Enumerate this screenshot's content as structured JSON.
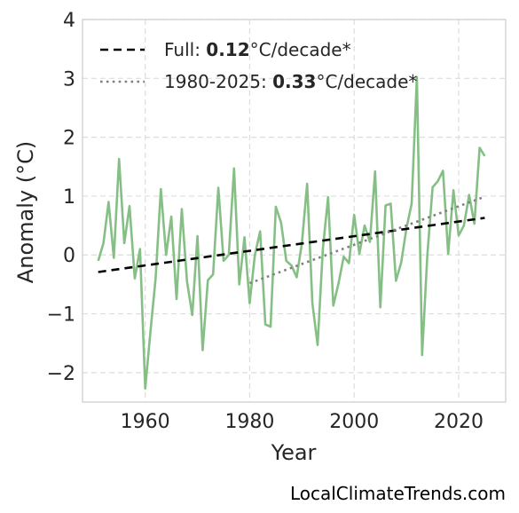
{
  "chart_data": {
    "type": "line",
    "xlabel": "Year",
    "ylabel": "Anomaly (°C)",
    "xlim": [
      1948,
      2029
    ],
    "ylim": [
      -2.5,
      4
    ],
    "xticks": [
      1960,
      1980,
      2000,
      2020
    ],
    "yticks": [
      -2,
      -1,
      0,
      1,
      2,
      3,
      4
    ],
    "ytick_labels": [
      "−2",
      "−1",
      "0",
      "1",
      "2",
      "3",
      "4"
    ],
    "grid": true,
    "legend_position": "top-left",
    "series": [
      {
        "style": "solid",
        "color": "#86bf86",
        "x": [
          1951,
          1952,
          1953,
          1954,
          1955,
          1956,
          1957,
          1958,
          1959,
          1960,
          1961,
          1962,
          1963,
          1964,
          1965,
          1966,
          1967,
          1968,
          1969,
          1970,
          1971,
          1972,
          1973,
          1974,
          1975,
          1976,
          1977,
          1978,
          1979,
          1980,
          1981,
          1982,
          1983,
          1984,
          1985,
          1986,
          1987,
          1988,
          1989,
          1990,
          1991,
          1992,
          1993,
          1994,
          1995,
          1996,
          1997,
          1998,
          1999,
          2000,
          2001,
          2002,
          2003,
          2004,
          2005,
          2006,
          2007,
          2008,
          2009,
          2010,
          2011,
          2012,
          2013,
          2014,
          2015,
          2016,
          2017,
          2018,
          2019,
          2020,
          2021,
          2022,
          2023,
          2024,
          2025
        ],
        "values": [
          -0.1,
          0.2,
          0.9,
          -0.05,
          1.63,
          0.2,
          0.83,
          -0.4,
          0.1,
          -2.27,
          -1.3,
          -0.4,
          1.12,
          0.0,
          0.65,
          -0.75,
          0.78,
          -0.45,
          -1.02,
          0.32,
          -1.62,
          -0.43,
          -0.33,
          1.14,
          -0.1,
          0.0,
          1.47,
          -0.5,
          0.3,
          -0.82,
          0.0,
          0.4,
          -1.18,
          -1.22,
          0.82,
          0.55,
          -0.1,
          -0.18,
          -0.38,
          0.2,
          1.21,
          -0.82,
          -1.53,
          0.1,
          0.98,
          -0.86,
          -0.48,
          -0.03,
          -0.14,
          0.68,
          0.02,
          0.5,
          0.22,
          1.42,
          -0.89,
          0.84,
          0.87,
          -0.44,
          -0.13,
          0.45,
          0.87,
          3.02,
          -1.7,
          0.0,
          1.15,
          1.25,
          1.43,
          0.02,
          1.1,
          0.33,
          0.5,
          1.02,
          0.53,
          1.82,
          1.68
        ]
      },
      {
        "name": "Full: ",
        "style": "dashed",
        "color": "#000000",
        "x": [
          1951,
          2025
        ],
        "values": [
          -0.29,
          0.63
        ],
        "rate": "0.12",
        "unit": "°C/decade*"
      },
      {
        "name": "1980-2025: ",
        "style": "dotted",
        "color": "#808080",
        "x": [
          1980,
          2025
        ],
        "values": [
          -0.48,
          0.99
        ],
        "rate": "0.33",
        "unit": "°C/decade*"
      }
    ]
  },
  "credit": "LocalClimateTrends.com"
}
